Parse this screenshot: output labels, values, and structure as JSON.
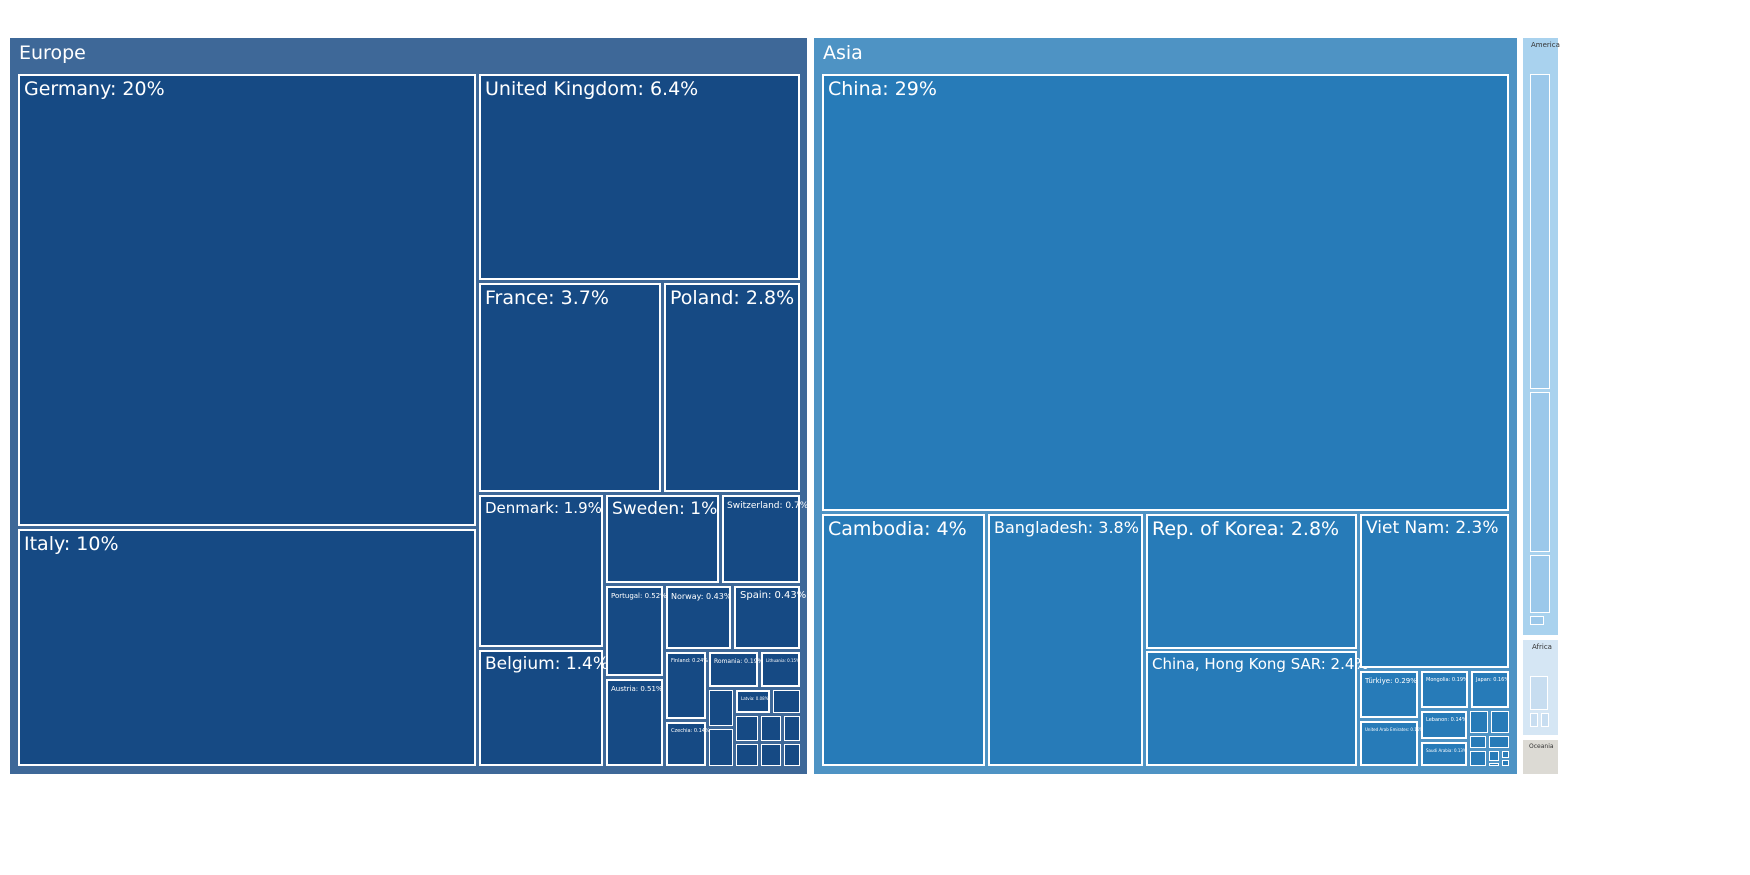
{
  "chart_data": {
    "type": "treemap",
    "groups": [
      {
        "name": "Europe",
        "color": "#3e6898",
        "cell_color": "#164a84",
        "items": [
          {
            "label": "Germany: 20%",
            "name": "Germany",
            "value": 20
          },
          {
            "label": "Italy: 10%",
            "name": "Italy",
            "value": 10
          },
          {
            "label": "United Kingdom: 6.4%",
            "name": "United Kingdom",
            "value": 6.4
          },
          {
            "label": "France: 3.7%",
            "name": "France",
            "value": 3.7
          },
          {
            "label": "Poland: 2.8%",
            "name": "Poland",
            "value": 2.8
          },
          {
            "label": "Denmark: 1.9%",
            "name": "Denmark",
            "value": 1.9
          },
          {
            "label": "Belgium: 1.4%",
            "name": "Belgium",
            "value": 1.4
          },
          {
            "label": "Sweden: 1%",
            "name": "Sweden",
            "value": 1.0
          },
          {
            "label": "Switzerland: 0.7%",
            "name": "Switzerland",
            "value": 0.7
          },
          {
            "label": "Portugal: 0.52%",
            "name": "Portugal",
            "value": 0.52
          },
          {
            "label": "Austria: 0.51%",
            "name": "Austria",
            "value": 0.51
          },
          {
            "label": "Norway: 0.43%",
            "name": "Norway",
            "value": 0.43
          },
          {
            "label": "Spain: 0.43%",
            "name": "Spain",
            "value": 0.43
          },
          {
            "label": "Finland: 0.24%",
            "name": "Finland",
            "value": 0.24
          },
          {
            "label": "Romania: 0.19%",
            "name": "Romania",
            "value": 0.19
          },
          {
            "label": "Lithuania: 0.15%",
            "name": "Lithuania",
            "value": 0.15
          },
          {
            "label": "Czechia: 0.14%",
            "name": "Czechia",
            "value": 0.14
          },
          {
            "label": "Latvia: 0.08%",
            "name": "Latvia",
            "value": 0.08
          }
        ]
      },
      {
        "name": "Asia",
        "color": "#4e93c4",
        "cell_color": "#277bb8",
        "items": [
          {
            "label": "China: 29%",
            "name": "China",
            "value": 29
          },
          {
            "label": "Cambodia: 4%",
            "name": "Cambodia",
            "value": 4
          },
          {
            "label": "Bangladesh: 3.8%",
            "name": "Bangladesh",
            "value": 3.8
          },
          {
            "label": "Rep. of Korea: 2.8%",
            "name": "Rep. of Korea",
            "value": 2.8
          },
          {
            "label": "China, Hong Kong SAR: 2.4%",
            "name": "China, Hong Kong SAR",
            "value": 2.4
          },
          {
            "label": "Viet Nam: 2.3%",
            "name": "Viet Nam",
            "value": 2.3
          },
          {
            "label": "Türkiye: 0.29%",
            "name": "Türkiye",
            "value": 0.29
          },
          {
            "label": "Mongolia: 0.19%",
            "name": "Mongolia",
            "value": 0.19
          },
          {
            "label": "Japan: 0.16%",
            "name": "Japan",
            "value": 0.16
          },
          {
            "label": "United Arab Emirates: 0.16%",
            "name": "United Arab Emirates",
            "value": 0.16
          },
          {
            "label": "Lebanon: 0.14%",
            "name": "Lebanon",
            "value": 0.14
          },
          {
            "label": "Saudi Arabia: 0.13%",
            "name": "Saudi Arabia",
            "value": 0.13
          }
        ]
      },
      {
        "name": "America",
        "color": "#a9d2ee",
        "cell_color": "#9bc8ea",
        "items": []
      },
      {
        "name": "Africa",
        "color": "#d5e6f4",
        "cell_color": "#c7ddf0",
        "items": []
      },
      {
        "name": "Oceania",
        "color": "#dcdad4",
        "cell_color": "#d0cec8",
        "items": []
      }
    ]
  }
}
